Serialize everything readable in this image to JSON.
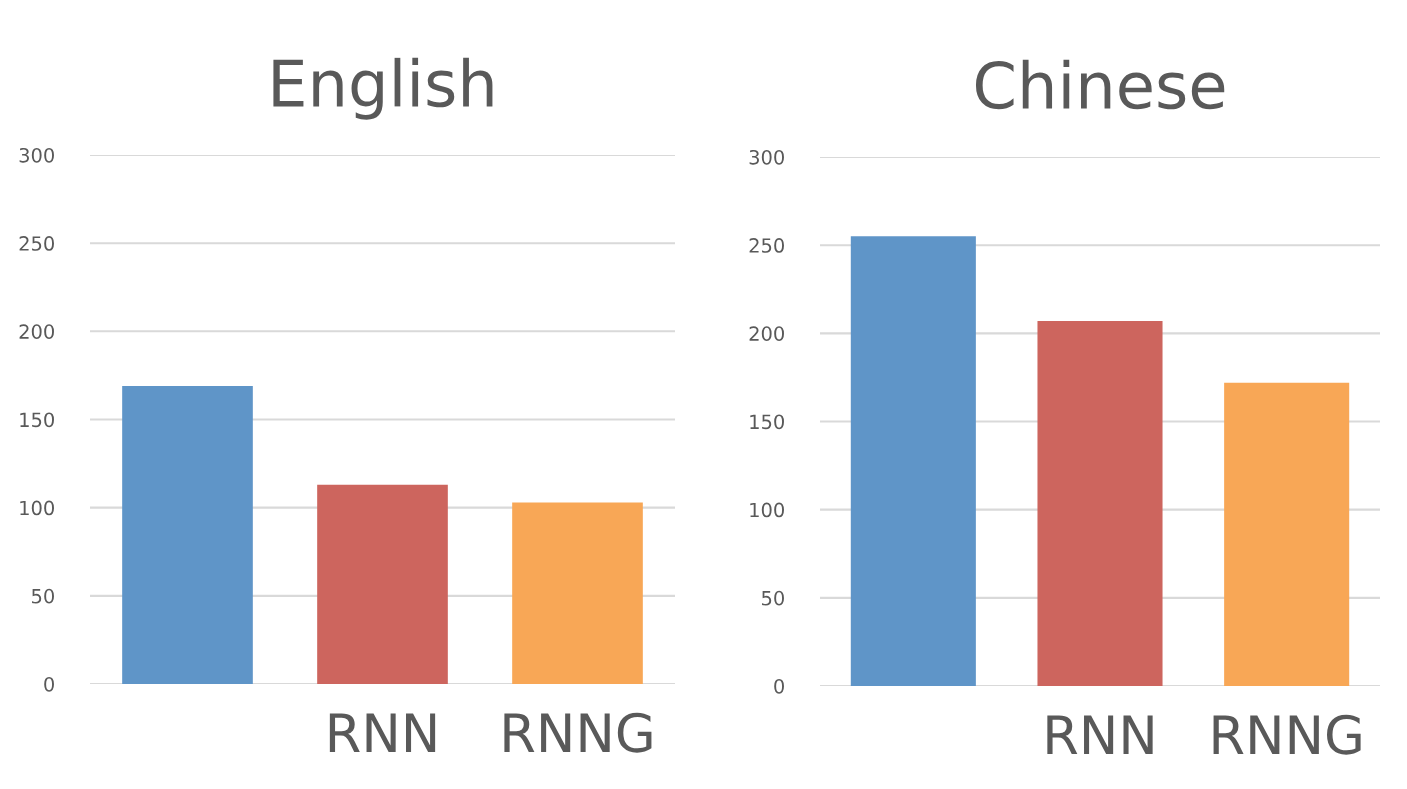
{
  "chart_data": [
    {
      "type": "bar",
      "title": "English",
      "categories": [
        null,
        "RNN",
        "RNNG"
      ],
      "values": [
        169,
        113,
        103
      ],
      "colors": [
        "#5f95c8",
        "#cd655e",
        "#f8a756"
      ],
      "ylim": [
        0,
        300
      ],
      "yticks": [
        0,
        50,
        100,
        150,
        200,
        250,
        300
      ],
      "grid": "y"
    },
    {
      "type": "bar",
      "title": "Chinese",
      "categories": [
        null,
        "RNN",
        "RNNG"
      ],
      "values": [
        255,
        207,
        172
      ],
      "colors": [
        "#5f95c8",
        "#cd655e",
        "#f8a756"
      ],
      "ylim": [
        0,
        300
      ],
      "yticks": [
        0,
        50,
        100,
        150,
        200,
        250,
        300
      ],
      "grid": "y"
    }
  ]
}
